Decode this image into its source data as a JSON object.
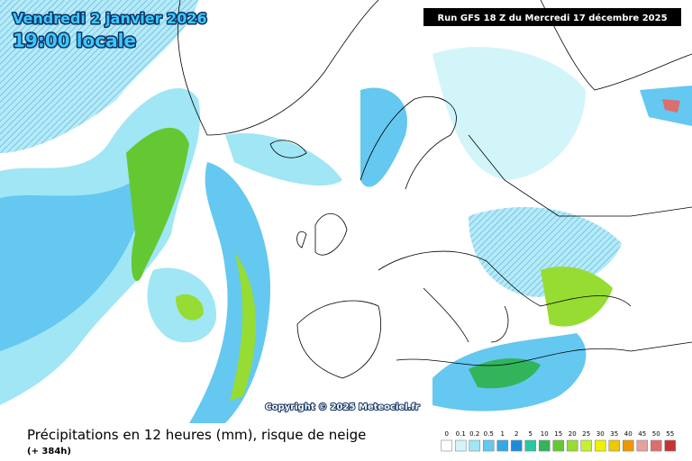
{
  "header": {
    "date": "Vendredi 2 janvier 2026",
    "time": "19:00 locale",
    "run": "Run GFS 18 Z du Mercredi 17 décembre 2025"
  },
  "map": {
    "copyright": "Copyright © 2025 Meteociel.fr"
  },
  "footer": {
    "title": "Précipitations en 12 heures (mm), risque de neige",
    "lead": "(+ 384h)"
  },
  "legend": {
    "items": [
      {
        "label": "0",
        "color": "#ffffff"
      },
      {
        "label": "0.1",
        "color": "#d2f5fa"
      },
      {
        "label": "0.2",
        "color": "#a0e6f5"
      },
      {
        "label": "0.5",
        "color": "#64c8f0"
      },
      {
        "label": "1",
        "color": "#32aae6"
      },
      {
        "label": "2",
        "color": "#1e8cdc"
      },
      {
        "label": "5",
        "color": "#28c8a0"
      },
      {
        "label": "10",
        "color": "#32b45a"
      },
      {
        "label": "15",
        "color": "#64c832"
      },
      {
        "label": "20",
        "color": "#96dc32"
      },
      {
        "label": "25",
        "color": "#c8f032"
      },
      {
        "label": "30",
        "color": "#f0f000"
      },
      {
        "label": "35",
        "color": "#f0c800"
      },
      {
        "label": "40",
        "color": "#f09600"
      },
      {
        "label": "45",
        "color": "#e6a0a0"
      },
      {
        "label": "50",
        "color": "#dc6e6e"
      },
      {
        "label": "55",
        "color": "#c83232"
      }
    ]
  }
}
